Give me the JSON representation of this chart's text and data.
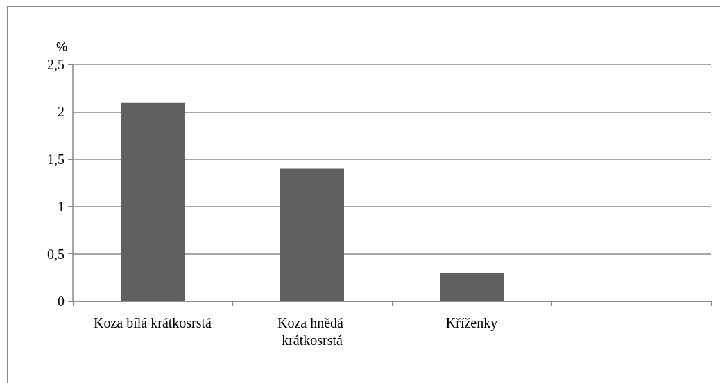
{
  "chart_data": {
    "type": "bar",
    "ylabel": "%",
    "categories": [
      "Koza bílá krátkosrstá",
      "Koza hnědá krátkosrstá",
      "Kříženky",
      null
    ],
    "values": [
      2.1,
      1.4,
      0.3,
      0
    ],
    "color": "#606060",
    "ylim": [
      0,
      2.5
    ],
    "yticks": [
      0,
      {
        "value": 0.5,
        "label": "0,5"
      },
      1,
      {
        "value": 1.5,
        "label": "1,5"
      },
      2,
      {
        "value": 2.5,
        "label": "2,5"
      }
    ],
    "grid": "y"
  }
}
